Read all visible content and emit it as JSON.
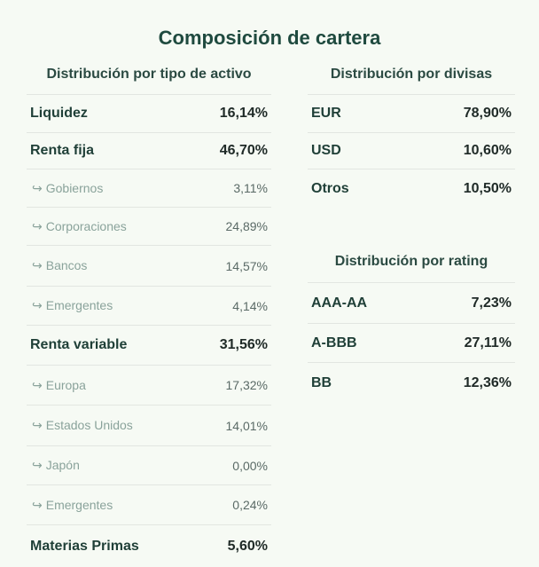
{
  "title": "Composición de cartera",
  "asset_section": {
    "heading": "Distribución por tipo de activo",
    "rows": [
      {
        "label": "Liquidez",
        "value": "16,14%",
        "type": "main"
      },
      {
        "label": "Renta fija",
        "value": "46,70%",
        "type": "main"
      },
      {
        "label": "Gobiernos",
        "value": "3,11%",
        "type": "sub"
      },
      {
        "label": "Corporaciones",
        "value": "24,89%",
        "type": "sub"
      },
      {
        "label": "Bancos",
        "value": "14,57%",
        "type": "sub"
      },
      {
        "label": "Emergentes",
        "value": "4,14%",
        "type": "sub"
      },
      {
        "label": "Renta variable",
        "value": "31,56%",
        "type": "main"
      },
      {
        "label": "Europa",
        "value": "17,32%",
        "type": "sub"
      },
      {
        "label": "Estados Unidos",
        "value": "14,01%",
        "type": "sub"
      },
      {
        "label": "Japón",
        "value": "0,00%",
        "type": "sub"
      },
      {
        "label": "Emergentes",
        "value": "0,24%",
        "type": "sub"
      },
      {
        "label": "Materias Primas",
        "value": "5,60%",
        "type": "main"
      }
    ]
  },
  "currency_section": {
    "heading": "Distribución por divisas",
    "rows": [
      {
        "label": "EUR",
        "value": "78,90%"
      },
      {
        "label": "USD",
        "value": "10,60%"
      },
      {
        "label": "Otros",
        "value": "10,50%"
      }
    ]
  },
  "rating_section": {
    "heading": "Distribución por rating",
    "rows": [
      {
        "label": "AAA-AA",
        "value": "7,23%"
      },
      {
        "label": "A-BBB",
        "value": "27,11%"
      },
      {
        "label": "BB",
        "value": "12,36%"
      }
    ]
  },
  "sub_arrow_icon": "↪"
}
